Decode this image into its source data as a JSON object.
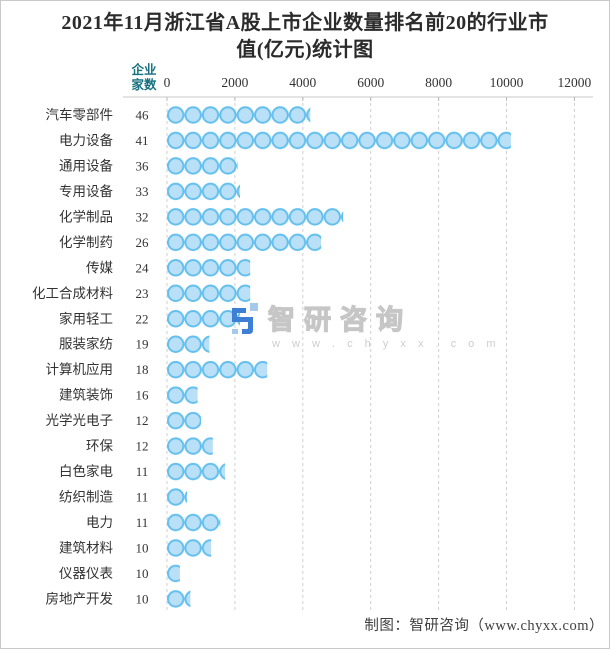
{
  "title": "2021年11月浙江省A股上市企业数量排名前20的行业市值(亿元)统计图",
  "title_lines": {
    "line1": "2021年11月浙江省A股上市企业数量排名前20的行业市",
    "line2": "值(亿元)统计图"
  },
  "header": {
    "count_label_line1": "企业",
    "count_label_line2": "家数",
    "count_label_color": "#15707f"
  },
  "watermark": {
    "brand": "智研咨询",
    "url": "w w w . c h y x x . c o m"
  },
  "footer": {
    "credit": "制图：智研咨询（www.chyxx.com）"
  },
  "colors": {
    "bubble_fill": "#b9e0f6",
    "bubble_stroke": "#63bfee",
    "gridline": "#cfcfcf",
    "axis_line": "#c9c9c9",
    "text": "#333333",
    "title": "#2b2b2b",
    "logo_blue": "#3e7fd6",
    "logo_light_blue": "#a3c9ec",
    "page_border": "#c9c9c9"
  },
  "chart_data": {
    "type": "bar",
    "orientation": "horizontal",
    "bar_style": "bubble-chain",
    "title": "2021年11月浙江省A股上市企业数量排名前20的行业市值(亿元)统计图",
    "xlabel": "市值(亿元)",
    "ylabel": "行业",
    "x_ticks": [
      0,
      2000,
      4000,
      6000,
      8000,
      10000,
      12000
    ],
    "xlim": [
      0,
      12000
    ],
    "grid": true,
    "axis_position": "top",
    "categories": [
      "汽车零部件",
      "电力设备",
      "通用设备",
      "专用设备",
      "化学制品",
      "化学制药",
      "传媒",
      "化工合成材料",
      "家用轻工",
      "服装家纺",
      "计算机应用",
      "建筑装饰",
      "光学光电子",
      "环保",
      "白色家电",
      "纺织制造",
      "电力",
      "建筑材料",
      "仪器仪表",
      "房地产开发"
    ],
    "series": [
      {
        "name": "企业家数",
        "values": [
          46,
          41,
          36,
          33,
          32,
          26,
          24,
          23,
          22,
          19,
          18,
          16,
          12,
          12,
          11,
          11,
          11,
          10,
          10,
          10
        ]
      },
      {
        "name": "市值(亿元)",
        "values": [
          4220,
          10130,
          2080,
          2150,
          5190,
          4540,
          2450,
          2450,
          2150,
          1250,
          2950,
          900,
          1000,
          1350,
          1710,
          590,
          1570,
          1300,
          380,
          690
        ]
      }
    ]
  }
}
